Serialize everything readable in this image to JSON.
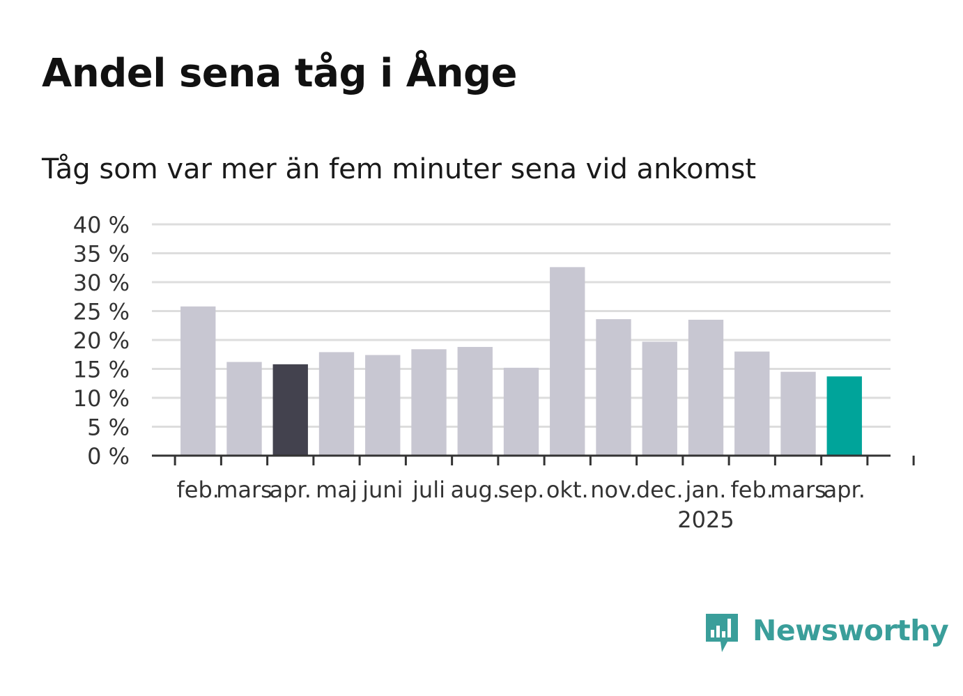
{
  "title": "Andel sena tåg i Ånge",
  "subtitle": "Tåg som var mer än fem minuter sena vid ankomst",
  "brand": {
    "name": "Newsworthy",
    "color": "#3a9e9a"
  },
  "colors": {
    "default_bar": "#c8c7d2",
    "highlight_dark": "#43424e",
    "highlight_current": "#00a49a",
    "grid": "#dddddd",
    "axis": "#333333"
  },
  "chart_data": {
    "type": "bar",
    "title": "Andel sena tåg i Ånge",
    "subtitle": "Tåg som var mer än fem minuter sena vid ankomst",
    "xlabel": "",
    "ylabel": "",
    "ylim": [
      0,
      40
    ],
    "y_ticks": [
      0,
      5,
      10,
      15,
      20,
      25,
      30,
      35,
      40
    ],
    "y_tick_labels": [
      "0 %",
      "5 %",
      "10 %",
      "15 %",
      "20 %",
      "25 %",
      "30 %",
      "35 %",
      "40 %"
    ],
    "categories": [
      "feb.",
      "mars",
      "apr.",
      "maj",
      "juni",
      "juli",
      "aug.",
      "sep.",
      "okt.",
      "nov.",
      "dec.",
      "jan.",
      "feb.",
      "mars",
      "apr."
    ],
    "year_labels": [
      {
        "index": 11,
        "label": "2025"
      }
    ],
    "values": [
      25.8,
      16.2,
      15.8,
      17.9,
      17.4,
      18.4,
      18.8,
      15.2,
      32.6,
      23.6,
      19.7,
      23.5,
      18.0,
      14.5,
      13.7
    ],
    "bar_colors": [
      "#c8c7d2",
      "#c8c7d2",
      "#43424e",
      "#c8c7d2",
      "#c8c7d2",
      "#c8c7d2",
      "#c8c7d2",
      "#c8c7d2",
      "#c8c7d2",
      "#c8c7d2",
      "#c8c7d2",
      "#c8c7d2",
      "#c8c7d2",
      "#c8c7d2",
      "#00a49a"
    ],
    "grid": true,
    "legend": "none"
  }
}
